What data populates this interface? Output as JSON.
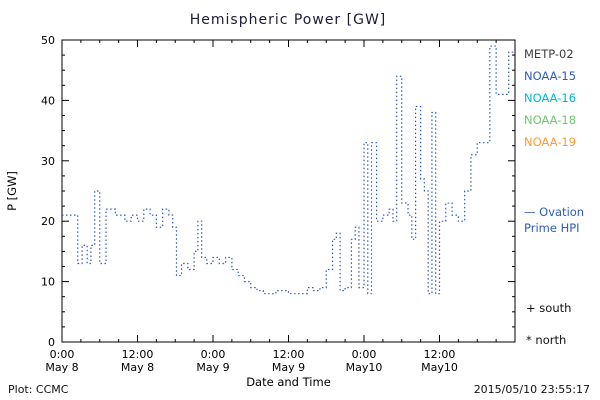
{
  "title": "Hemispheric Power [GW]",
  "legend": {
    "satellites": [
      {
        "label": "METP-02",
        "color": "#3d3d3d"
      },
      {
        "label": "NOAA-15",
        "color": "#2e5cb8"
      },
      {
        "label": "NOAA-16",
        "color": "#00b8d4"
      },
      {
        "label": "NOAA-18",
        "color": "#6fc76f"
      },
      {
        "label": "NOAA-19",
        "color": "#ff9933"
      }
    ],
    "ovation": {
      "line1": "— Ovation",
      "line2": "Prime HPI"
    },
    "south_label": "+ south",
    "north_label": "* north"
  },
  "footer": {
    "left": "Plot: CCMC",
    "right": "2015/05/10 23:55:17"
  },
  "chart_data": {
    "type": "line",
    "title": "Hemispheric Power [GW]",
    "xlabel": "Date and Time",
    "ylabel": "P [GW]",
    "ylim": [
      0,
      50
    ],
    "x_range_hours": [
      0,
      72
    ],
    "y_ticks": [
      0,
      10,
      20,
      30,
      40,
      50
    ],
    "x_ticks": [
      {
        "hour": 0,
        "time": "0:00",
        "date": "May 8"
      },
      {
        "hour": 12,
        "time": "12:00",
        "date": "May 8"
      },
      {
        "hour": 24,
        "time": "0:00",
        "date": "May 9"
      },
      {
        "hour": 36,
        "time": "12:00",
        "date": "May 9"
      },
      {
        "hour": 48,
        "time": "0:00",
        "date": "May10"
      },
      {
        "hour": 60,
        "time": "12:00",
        "date": "May10"
      }
    ],
    "line_color": "#2e5cb8",
    "line_style": "dotted-step",
    "legend_position": "right",
    "grid": false,
    "series": [
      {
        "name": "Ovation Prime HPI",
        "x_hours": [
          0,
          2.5,
          3.2,
          4,
          4.6,
          5.2,
          6,
          7,
          8.5,
          10,
          11,
          12,
          13,
          14,
          15,
          16,
          17,
          17.6,
          18.2,
          19,
          20,
          21,
          21.6,
          22.2,
          23,
          24,
          25,
          26,
          27,
          28,
          29,
          30,
          31,
          32,
          34,
          36,
          38,
          39,
          40,
          41,
          42,
          43,
          43.6,
          44.2,
          45,
          46,
          46.6,
          47.2,
          48,
          48.6,
          49.2,
          50,
          51,
          52,
          52.6,
          53.2,
          54,
          55,
          55.6,
          56.2,
          57,
          57.6,
          58.2,
          58.8,
          59.4,
          60,
          61,
          62,
          63,
          64,
          65,
          66,
          67,
          68,
          69,
          70,
          71,
          72
        ],
        "values": [
          21,
          13,
          16,
          13,
          16,
          25,
          13,
          22,
          21,
          20,
          21,
          20,
          22,
          21,
          19,
          22,
          21,
          19,
          11,
          13,
          12,
          15,
          20,
          14,
          13,
          14,
          13,
          14,
          12,
          11,
          10,
          9,
          8.5,
          8,
          8.5,
          8,
          8,
          9,
          8.5,
          9,
          12,
          17,
          18,
          8.5,
          9,
          17,
          19,
          9,
          33,
          8,
          33,
          20,
          21,
          22,
          20,
          44,
          23,
          21,
          17,
          39,
          27,
          25,
          8,
          38,
          8,
          20,
          23,
          21,
          20,
          25,
          31,
          33,
          33,
          49,
          41,
          41,
          48,
          48
        ]
      }
    ]
  }
}
